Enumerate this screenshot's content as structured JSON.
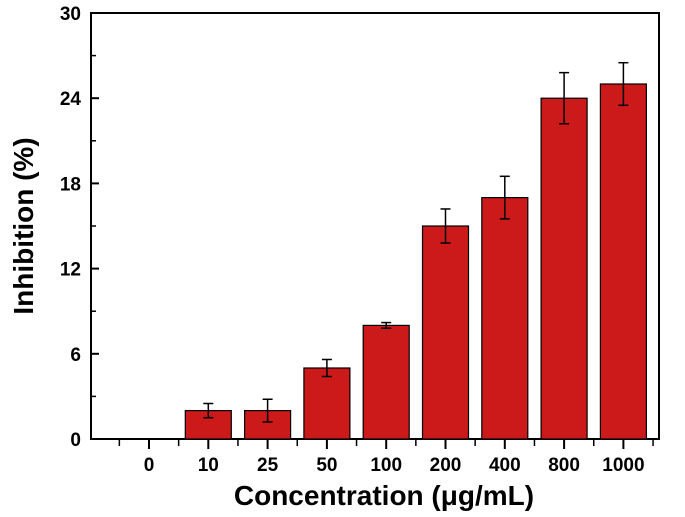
{
  "chart_data": {
    "type": "bar",
    "title": "",
    "xlabel": "Concentration (μg/mL)",
    "ylabel": "Inhibition (%)",
    "categories": [
      "0",
      "10",
      "25",
      "50",
      "100",
      "200",
      "400",
      "800",
      "1000"
    ],
    "values": [
      0,
      2.0,
      2.0,
      5.0,
      8.0,
      15.0,
      17.0,
      24.0,
      25.0
    ],
    "errors": [
      0,
      0.5,
      0.8,
      0.6,
      0.2,
      1.2,
      1.5,
      1.8,
      1.5
    ],
    "ylim": [
      0,
      30
    ],
    "yticks": [
      0,
      6,
      12,
      18,
      24,
      30
    ],
    "bar_color": "#cc1a1a",
    "grid": false,
    "legend": "none"
  }
}
